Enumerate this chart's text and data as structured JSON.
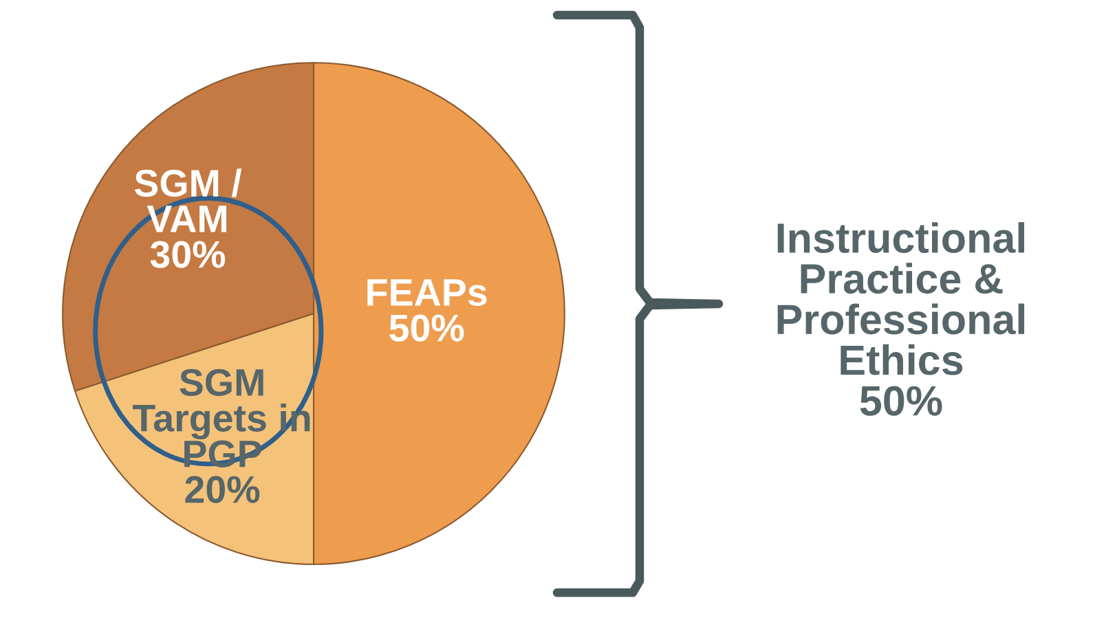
{
  "chart_data": {
    "type": "pie",
    "categories": [
      "FEAPs",
      "SGM\nTargets in\nPGP",
      "SGM /\nVAM"
    ],
    "values": [
      50,
      20,
      30
    ],
    "value_labels": [
      "50%",
      "20%",
      "30%"
    ],
    "colors": [
      "#ee9c4e",
      "#f5c27a",
      "#c47a42"
    ],
    "annotations": [
      "Instructional\nPractice &\nProfessional\nEthics\n50%"
    ]
  }
}
